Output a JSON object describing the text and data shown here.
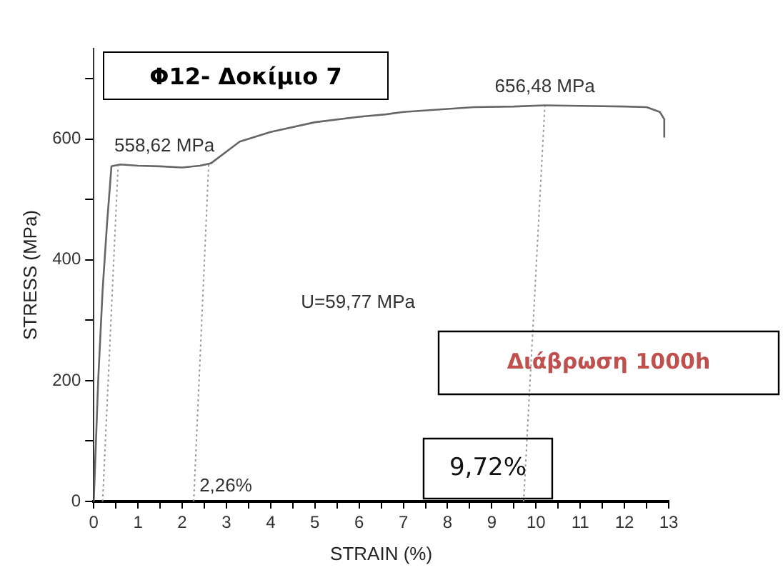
{
  "chart_data": {
    "type": "line",
    "title": "Φ12- Δοκίμιο 7",
    "xlabel": "STRAIN (%)",
    "ylabel": "STRESS (MPa)",
    "xlim": [
      0,
      13
    ],
    "xticks": [
      0,
      {
        "value": 0.5,
        "label": null
      },
      1,
      {
        "value": 1.5,
        "label": null
      },
      2,
      {
        "value": 2.5,
        "label": null
      },
      3,
      {
        "value": 3.5,
        "label": null
      },
      4,
      {
        "value": 4.5,
        "label": null
      },
      5,
      {
        "value": 5.5,
        "label": null
      },
      6,
      {
        "value": 6.5,
        "label": null
      },
      7,
      {
        "value": 7.5,
        "label": null
      },
      8,
      {
        "value": 8.5,
        "label": null
      },
      9,
      {
        "value": 9.5,
        "label": null
      },
      10,
      {
        "value": 10.5,
        "label": null
      },
      11,
      {
        "value": 11.5,
        "label": null
      },
      12,
      {
        "value": 12.5,
        "label": null
      },
      13
    ],
    "ylim": [
      0,
      750
    ],
    "yticks": [
      0,
      {
        "value": 100,
        "label": null
      },
      200,
      {
        "value": 300,
        "label": null
      },
      400,
      {
        "value": 500,
        "label": null
      },
      600,
      {
        "value": 700,
        "label": null
      }
    ],
    "grid": false,
    "legend": false,
    "marker": "none",
    "series": [
      {
        "color": "#666666",
        "line_style": "solid",
        "x": [
          0,
          0.1,
          0.2,
          0.3,
          0.4,
          0.6,
          1.0,
          1.5,
          2.0,
          2.4,
          2.65,
          3.3,
          4.0,
          5.0,
          6.0,
          6.6,
          7.0,
          8.0,
          8.6,
          9.5,
          10.2,
          11.0,
          12.0,
          12.5,
          12.8,
          12.9,
          12.9
        ],
        "values": [
          0,
          200,
          350,
          460,
          555,
          558,
          556,
          555,
          553,
          556,
          560,
          596,
          612,
          628,
          637,
          641,
          645,
          650,
          653,
          654,
          656,
          655,
          654,
          653,
          645,
          633,
          604
        ]
      },
      {
        "color": "#999999",
        "line_style": "dotted",
        "x": [
          0.2,
          0.55
        ],
        "values": [
          0,
          555
        ]
      },
      {
        "color": "#999999",
        "line_style": "dotted",
        "x": [
          2.26,
          2.6
        ],
        "values": [
          0,
          560
        ]
      },
      {
        "color": "#999999",
        "line_style": "dotted",
        "x": [
          9.72,
          10.2
        ],
        "values": [
          0,
          656
        ]
      }
    ],
    "annotations": [
      {
        "text": "558,62 MPa",
        "x": 0.4,
        "y": 558.62
      },
      {
        "text": "656,48 MPa",
        "x": 10.2,
        "y": 656.48
      },
      {
        "text": "2,26%",
        "x": 2.26,
        "y": 0
      },
      {
        "text": "9,72%",
        "x": 9.72,
        "y": 0
      },
      "U=59,77 MPa",
      "Διάβρωση 1000h"
    ]
  }
}
